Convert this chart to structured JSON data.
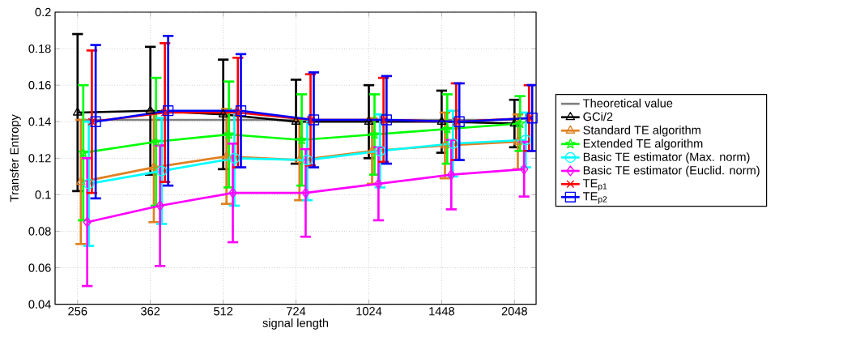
{
  "chart_data": {
    "type": "line",
    "xlabel": "signal length",
    "ylabel": "Transfer Entropy",
    "log": "x",
    "grid": true,
    "legend": "right",
    "line_style": "solid",
    "xlim": [
      230,
      2270
    ],
    "xticks": [
      256,
      362,
      512,
      724,
      1024,
      1448,
      2048
    ],
    "ylim": [
      0.04,
      0.2
    ],
    "yticks": [
      0.04,
      0.06,
      0.08,
      0.1,
      0.12,
      0.14,
      0.16,
      0.18,
      0.2
    ],
    "series": [
      {
        "name": "Theoretical value",
        "color": "#808080",
        "marker": "none",
        "x": [
          256,
          362,
          512,
          724,
          1024,
          1448,
          2048
        ],
        "values": [
          0.141,
          0.141,
          0.141,
          0.141,
          0.141,
          0.141,
          0.141
        ]
      },
      {
        "name": "GCi/2",
        "color": "#000000",
        "marker": "triangle",
        "x": [
          256,
          362,
          512,
          724,
          1024,
          1448,
          2048
        ],
        "values": [
          0.145,
          0.146,
          0.144,
          0.14,
          0.14,
          0.14,
          0.139
        ],
        "errors": [
          0.043,
          0.035,
          0.03,
          0.023,
          0.02,
          0.017,
          0.013
        ]
      },
      {
        "name": "Standard TE algorithm",
        "color": "#e08020",
        "marker": "triangle",
        "x": [
          260,
          368,
          520,
          736,
          1040,
          1471,
          2081
        ],
        "values": [
          0.107,
          0.115,
          0.121,
          0.119,
          0.124,
          0.127,
          0.129
        ],
        "errors": [
          0.034,
          0.03,
          0.026,
          0.022,
          0.018,
          0.018,
          0.015
        ]
      },
      {
        "name": "Extended TE algorithm",
        "color": "#00ff00",
        "marker": "star",
        "x": [
          263,
          372,
          526,
          744,
          1052,
          1487,
          2103
        ],
        "values": [
          0.123,
          0.129,
          0.133,
          0.13,
          0.133,
          0.136,
          0.139
        ],
        "errors": [
          0.037,
          0.035,
          0.029,
          0.025,
          0.022,
          0.019,
          0.015
        ]
      },
      {
        "name": "Basic TE estimator (Max. norm)",
        "color": "#00ffff",
        "marker": "circle",
        "x": [
          270,
          382,
          540,
          764,
          1080,
          1528,
          2161
        ],
        "values": [
          0.106,
          0.113,
          0.12,
          0.119,
          0.124,
          0.128,
          0.13
        ],
        "errors": [
          0.034,
          0.029,
          0.026,
          0.022,
          0.02,
          0.018,
          0.015
        ]
      },
      {
        "name": "Basic TE estimator (Euclid. norm)",
        "color": "#ff00ff",
        "marker": "diamond",
        "x": [
          268,
          379,
          536,
          758,
          1072,
          1516,
          2144
        ],
        "values": [
          0.085,
          0.094,
          0.101,
          0.101,
          0.106,
          0.111,
          0.114
        ],
        "errors": [
          0.035,
          0.033,
          0.027,
          0.024,
          0.02,
          0.019,
          0.015
        ]
      },
      {
        "name": "TE$_{p1}$",
        "color": "#ff0000",
        "marker": "cross",
        "x": [
          274,
          388,
          549,
          776,
          1098,
          1552,
          2195
        ],
        "values": [
          0.14,
          0.145,
          0.145,
          0.141,
          0.141,
          0.14,
          0.142
        ],
        "errors": [
          0.039,
          0.038,
          0.03,
          0.025,
          0.023,
          0.021,
          0.018
        ]
      },
      {
        "name": "TE$_{p2}$",
        "color": "#0000ff",
        "marker": "square",
        "x": [
          279,
          394,
          557,
          788,
          1114,
          1575,
          2228
        ],
        "values": [
          0.14,
          0.146,
          0.146,
          0.141,
          0.141,
          0.14,
          0.142
        ],
        "errors": [
          0.042,
          0.041,
          0.031,
          0.026,
          0.024,
          0.021,
          0.018
        ]
      }
    ]
  }
}
